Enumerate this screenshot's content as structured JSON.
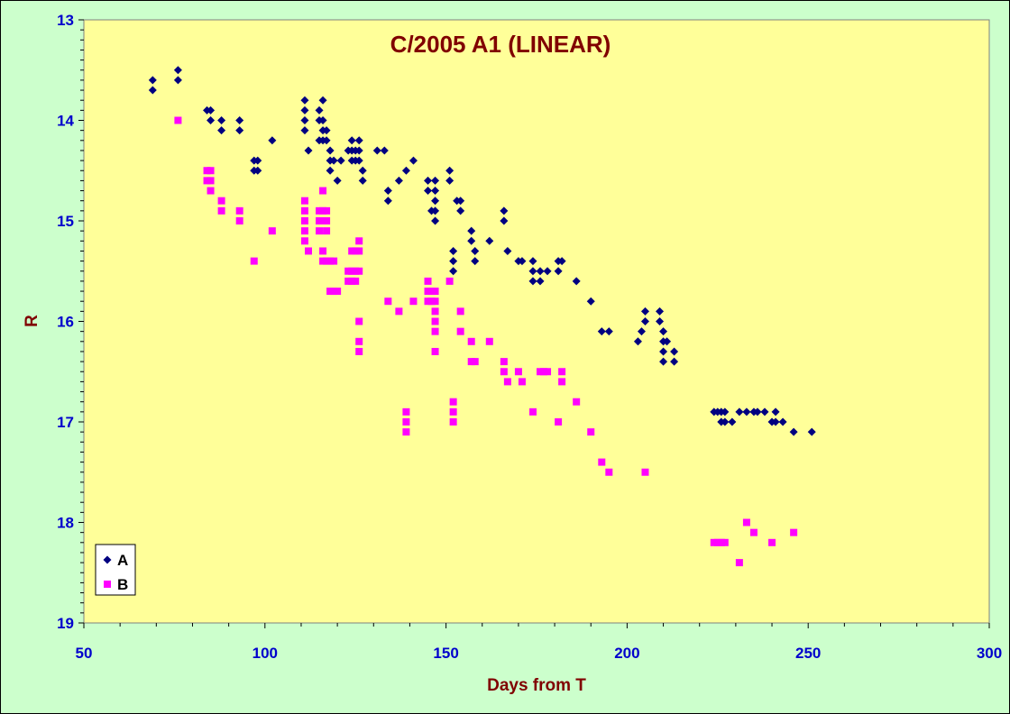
{
  "chart_data": {
    "type": "scatter",
    "title": "C/2005 A1 (LINEAR)",
    "xlabel": "Days from T",
    "ylabel": "R",
    "xlim": [
      50,
      300
    ],
    "ylim": [
      13,
      19
    ],
    "y_inverted": true,
    "x_ticks": [
      "50",
      "100",
      "150",
      "200",
      "250",
      "300"
    ],
    "y_ticks": [
      "13",
      "14",
      "15",
      "16",
      "17",
      "18",
      "19"
    ],
    "grid": false,
    "legend_position": "bottom-left",
    "plot_background": "#ffff99",
    "page_background": "#ccffcc",
    "series": [
      {
        "name": "A",
        "marker": "diamond",
        "color": "#000080",
        "points": [
          [
            69,
            13.6
          ],
          [
            69,
            13.7
          ],
          [
            76,
            13.5
          ],
          [
            76,
            13.6
          ],
          [
            84,
            13.9
          ],
          [
            85,
            13.9
          ],
          [
            85,
            14.0
          ],
          [
            88,
            14.0
          ],
          [
            88,
            14.1
          ],
          [
            93,
            14.0
          ],
          [
            93,
            14.1
          ],
          [
            97,
            14.4
          ],
          [
            97,
            14.5
          ],
          [
            98,
            14.4
          ],
          [
            98,
            14.5
          ],
          [
            102,
            14.2
          ],
          [
            111,
            13.8
          ],
          [
            111,
            13.9
          ],
          [
            111,
            14.0
          ],
          [
            111,
            14.1
          ],
          [
            112,
            14.3
          ],
          [
            115,
            13.9
          ],
          [
            115,
            14.0
          ],
          [
            115,
            14.2
          ],
          [
            116,
            13.8
          ],
          [
            116,
            14.0
          ],
          [
            116,
            14.1
          ],
          [
            116,
            14.2
          ],
          [
            117,
            14.1
          ],
          [
            117,
            14.2
          ],
          [
            118,
            14.3
          ],
          [
            118,
            14.4
          ],
          [
            118,
            14.5
          ],
          [
            119,
            14.4
          ],
          [
            120,
            14.6
          ],
          [
            121,
            14.4
          ],
          [
            123,
            14.3
          ],
          [
            124,
            14.2
          ],
          [
            124,
            14.3
          ],
          [
            124,
            14.4
          ],
          [
            125,
            14.3
          ],
          [
            125,
            14.4
          ],
          [
            126,
            14.2
          ],
          [
            126,
            14.3
          ],
          [
            126,
            14.4
          ],
          [
            127,
            14.5
          ],
          [
            127,
            14.6
          ],
          [
            131,
            14.3
          ],
          [
            133,
            14.3
          ],
          [
            134,
            14.7
          ],
          [
            134,
            14.8
          ],
          [
            137,
            14.6
          ],
          [
            139,
            14.5
          ],
          [
            141,
            14.4
          ],
          [
            145,
            14.6
          ],
          [
            145,
            14.7
          ],
          [
            146,
            14.9
          ],
          [
            147,
            14.6
          ],
          [
            147,
            14.7
          ],
          [
            147,
            14.8
          ],
          [
            147,
            14.9
          ],
          [
            147,
            15.0
          ],
          [
            151,
            14.5
          ],
          [
            151,
            14.6
          ],
          [
            152,
            15.3
          ],
          [
            152,
            15.4
          ],
          [
            152,
            15.5
          ],
          [
            153,
            14.8
          ],
          [
            154,
            14.8
          ],
          [
            154,
            14.9
          ],
          [
            157,
            15.1
          ],
          [
            157,
            15.2
          ],
          [
            158,
            15.3
          ],
          [
            158,
            15.4
          ],
          [
            162,
            15.2
          ],
          [
            166,
            14.9
          ],
          [
            166,
            15.0
          ],
          [
            167,
            15.3
          ],
          [
            170,
            15.4
          ],
          [
            171,
            15.4
          ],
          [
            174,
            15.4
          ],
          [
            174,
            15.5
          ],
          [
            174,
            15.6
          ],
          [
            176,
            15.5
          ],
          [
            176,
            15.6
          ],
          [
            178,
            15.5
          ],
          [
            181,
            15.5
          ],
          [
            181,
            15.4
          ],
          [
            182,
            15.4
          ],
          [
            186,
            15.6
          ],
          [
            190,
            15.8
          ],
          [
            193,
            16.1
          ],
          [
            195,
            16.1
          ],
          [
            203,
            16.2
          ],
          [
            204,
            16.1
          ],
          [
            205,
            15.9
          ],
          [
            205,
            16.0
          ],
          [
            209,
            15.9
          ],
          [
            209,
            16.0
          ],
          [
            210,
            16.1
          ],
          [
            210,
            16.2
          ],
          [
            210,
            16.3
          ],
          [
            210,
            16.4
          ],
          [
            211,
            16.2
          ],
          [
            213,
            16.3
          ],
          [
            213,
            16.4
          ],
          [
            224,
            16.9
          ],
          [
            225,
            16.9
          ],
          [
            226,
            16.9
          ],
          [
            226,
            17.0
          ],
          [
            227,
            16.9
          ],
          [
            227,
            17.0
          ],
          [
            229,
            17.0
          ],
          [
            231,
            16.9
          ],
          [
            233,
            16.9
          ],
          [
            235,
            16.9
          ],
          [
            236,
            16.9
          ],
          [
            238,
            16.9
          ],
          [
            240,
            17.0
          ],
          [
            241,
            16.9
          ],
          [
            241,
            17.0
          ],
          [
            243,
            17.0
          ],
          [
            246,
            17.1
          ],
          [
            251,
            17.1
          ]
        ]
      },
      {
        "name": "B",
        "marker": "square",
        "color": "#ff00ff",
        "points": [
          [
            76,
            14.0
          ],
          [
            84,
            14.5
          ],
          [
            84,
            14.6
          ],
          [
            85,
            14.5
          ],
          [
            85,
            14.6
          ],
          [
            85,
            14.7
          ],
          [
            88,
            14.8
          ],
          [
            88,
            14.9
          ],
          [
            93,
            14.9
          ],
          [
            93,
            15.0
          ],
          [
            97,
            15.4
          ],
          [
            102,
            15.1
          ],
          [
            111,
            14.8
          ],
          [
            111,
            14.9
          ],
          [
            111,
            15.0
          ],
          [
            111,
            15.1
          ],
          [
            111,
            15.2
          ],
          [
            112,
            15.3
          ],
          [
            115,
            14.9
          ],
          [
            115,
            15.0
          ],
          [
            115,
            15.1
          ],
          [
            116,
            14.7
          ],
          [
            116,
            14.9
          ],
          [
            116,
            15.0
          ],
          [
            116,
            15.3
          ],
          [
            116,
            15.4
          ],
          [
            117,
            14.9
          ],
          [
            117,
            15.0
          ],
          [
            117,
            15.1
          ],
          [
            117,
            15.4
          ],
          [
            118,
            15.4
          ],
          [
            118,
            15.7
          ],
          [
            119,
            15.4
          ],
          [
            119,
            15.7
          ],
          [
            120,
            15.7
          ],
          [
            123,
            15.5
          ],
          [
            123,
            15.6
          ],
          [
            124,
            15.3
          ],
          [
            124,
            15.5
          ],
          [
            124,
            15.6
          ],
          [
            125,
            15.3
          ],
          [
            125,
            15.5
          ],
          [
            125,
            15.6
          ],
          [
            126,
            15.2
          ],
          [
            126,
            15.3
          ],
          [
            126,
            15.5
          ],
          [
            126,
            16.0
          ],
          [
            126,
            16.2
          ],
          [
            126,
            16.3
          ],
          [
            134,
            15.8
          ],
          [
            137,
            15.9
          ],
          [
            139,
            16.9
          ],
          [
            139,
            17.0
          ],
          [
            139,
            17.1
          ],
          [
            141,
            15.8
          ],
          [
            145,
            15.6
          ],
          [
            145,
            15.7
          ],
          [
            145,
            15.8
          ],
          [
            146,
            15.7
          ],
          [
            146,
            15.8
          ],
          [
            147,
            15.7
          ],
          [
            147,
            15.8
          ],
          [
            147,
            15.9
          ],
          [
            147,
            16.0
          ],
          [
            147,
            16.1
          ],
          [
            147,
            16.3
          ],
          [
            151,
            15.6
          ],
          [
            152,
            16.8
          ],
          [
            152,
            16.9
          ],
          [
            152,
            17.0
          ],
          [
            154,
            15.9
          ],
          [
            154,
            16.1
          ],
          [
            157,
            16.2
          ],
          [
            157,
            16.4
          ],
          [
            158,
            16.4
          ],
          [
            162,
            16.2
          ],
          [
            166,
            16.4
          ],
          [
            166,
            16.5
          ],
          [
            167,
            16.6
          ],
          [
            170,
            16.5
          ],
          [
            171,
            16.6
          ],
          [
            174,
            16.9
          ],
          [
            176,
            16.5
          ],
          [
            177,
            16.5
          ],
          [
            178,
            16.5
          ],
          [
            181,
            17.0
          ],
          [
            182,
            16.5
          ],
          [
            182,
            16.6
          ],
          [
            186,
            16.8
          ],
          [
            190,
            17.1
          ],
          [
            193,
            17.4
          ],
          [
            195,
            17.5
          ],
          [
            205,
            17.5
          ],
          [
            224,
            18.2
          ],
          [
            225,
            18.2
          ],
          [
            226,
            18.2
          ],
          [
            227,
            18.2
          ],
          [
            231,
            18.4
          ],
          [
            233,
            18.0
          ],
          [
            235,
            18.1
          ],
          [
            240,
            18.2
          ],
          [
            246,
            18.1
          ]
        ]
      }
    ]
  }
}
